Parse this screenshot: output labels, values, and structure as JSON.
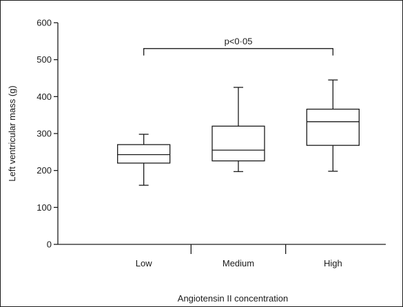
{
  "chart_data": {
    "type": "box",
    "title": "",
    "xlabel": "Angiotensin II concentration",
    "ylabel": "Left ventricular mass (g)",
    "ylim": [
      0,
      600
    ],
    "yticks": [
      "0",
      "100",
      "200",
      "300",
      "400",
      "500",
      "600"
    ],
    "grid": false,
    "categories": [
      "Low",
      "Medium",
      "High"
    ],
    "boxes": [
      {
        "category": "Low",
        "whisker_low": 160,
        "q1": 220,
        "median": 243,
        "q3": 270,
        "whisker_high": 298
      },
      {
        "category": "Medium",
        "whisker_low": 197,
        "q1": 226,
        "median": 255,
        "q3": 320,
        "whisker_high": 425
      },
      {
        "category": "High",
        "whisker_low": 198,
        "q1": 268,
        "median": 332,
        "q3": 366,
        "whisker_high": 445
      }
    ],
    "annotation": {
      "text": "p<0·05",
      "from": "Low",
      "to": "High",
      "y": 530
    }
  }
}
